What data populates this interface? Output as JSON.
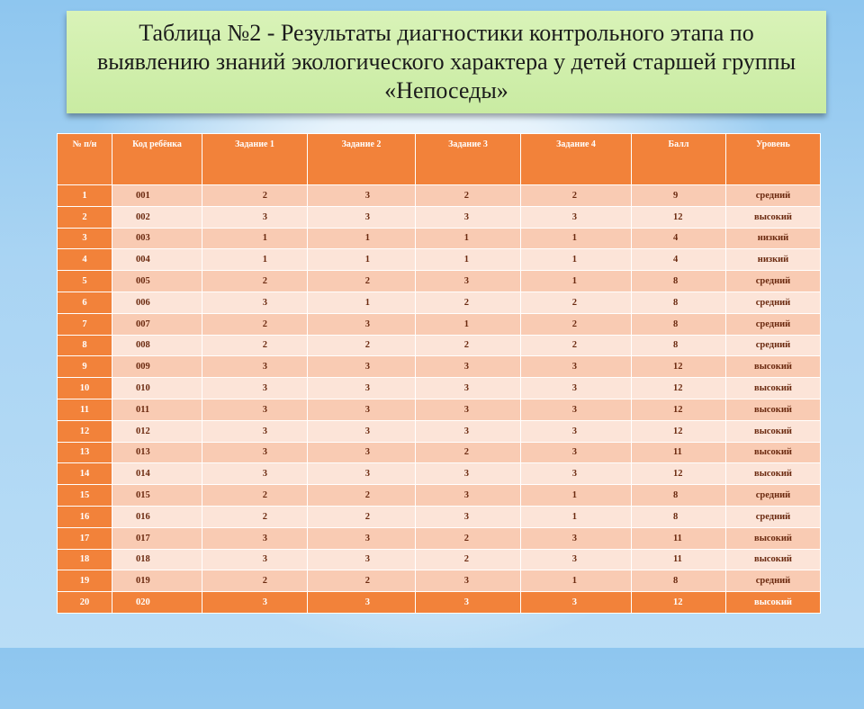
{
  "slide": {
    "title": "Таблица №2 - Результаты диагностики контрольного этапа по выявлению знаний экологического характера у детей старшей группы «Непоседы»"
  },
  "table": {
    "headers": [
      "№ п/н",
      "Код ребёнка",
      "Задание 1",
      "Задание 2",
      "Задание 3",
      "Задание 4",
      "Балл",
      "Уровень"
    ],
    "rows": [
      [
        "1",
        "001",
        "2",
        "3",
        "2",
        "2",
        "9",
        "средний"
      ],
      [
        "2",
        "002",
        "3",
        "3",
        "3",
        "3",
        "12",
        "высокий"
      ],
      [
        "3",
        "003",
        "1",
        "1",
        "1",
        "1",
        "4",
        "низкий"
      ],
      [
        "4",
        "004",
        "1",
        "1",
        "1",
        "1",
        "4",
        "низкий"
      ],
      [
        "5",
        "005",
        "2",
        "2",
        "3",
        "1",
        "8",
        "средний"
      ],
      [
        "6",
        "006",
        "3",
        "1",
        "2",
        "2",
        "8",
        "средний"
      ],
      [
        "7",
        "007",
        "2",
        "3",
        "1",
        "2",
        "8",
        "средний"
      ],
      [
        "8",
        "008",
        "2",
        "2",
        "2",
        "2",
        "8",
        "средний"
      ],
      [
        "9",
        "009",
        "3",
        "3",
        "3",
        "3",
        "12",
        "высокий"
      ],
      [
        "10",
        "010",
        "3",
        "3",
        "3",
        "3",
        "12",
        "высокий"
      ],
      [
        "11",
        "011",
        "3",
        "3",
        "3",
        "3",
        "12",
        "высокий"
      ],
      [
        "12",
        "012",
        "3",
        "3",
        "3",
        "3",
        "12",
        "высокий"
      ],
      [
        "13",
        "013",
        "3",
        "3",
        "2",
        "3",
        "11",
        "высокий"
      ],
      [
        "14",
        "014",
        "3",
        "3",
        "3",
        "3",
        "12",
        "высокий"
      ],
      [
        "15",
        "015",
        "2",
        "2",
        "3",
        "1",
        "8",
        "средний"
      ],
      [
        "16",
        "016",
        "2",
        "2",
        "3",
        "1",
        "8",
        "средний"
      ],
      [
        "17",
        "017",
        "3",
        "3",
        "2",
        "3",
        "11",
        "высокий"
      ],
      [
        "18",
        "018",
        "3",
        "3",
        "2",
        "3",
        "11",
        "высокий"
      ],
      [
        "19",
        "019",
        "2",
        "2",
        "3",
        "1",
        "8",
        "средний"
      ],
      [
        "20",
        "020",
        "3",
        "3",
        "3",
        "3",
        "12",
        "высокий"
      ]
    ]
  },
  "colors": {
    "header_fill": "#f2823a",
    "row_dark": "#f9cbb3",
    "row_light": "#fce4d8",
    "title_fill": "#d9f3b8",
    "background": "#a9d4f3"
  }
}
